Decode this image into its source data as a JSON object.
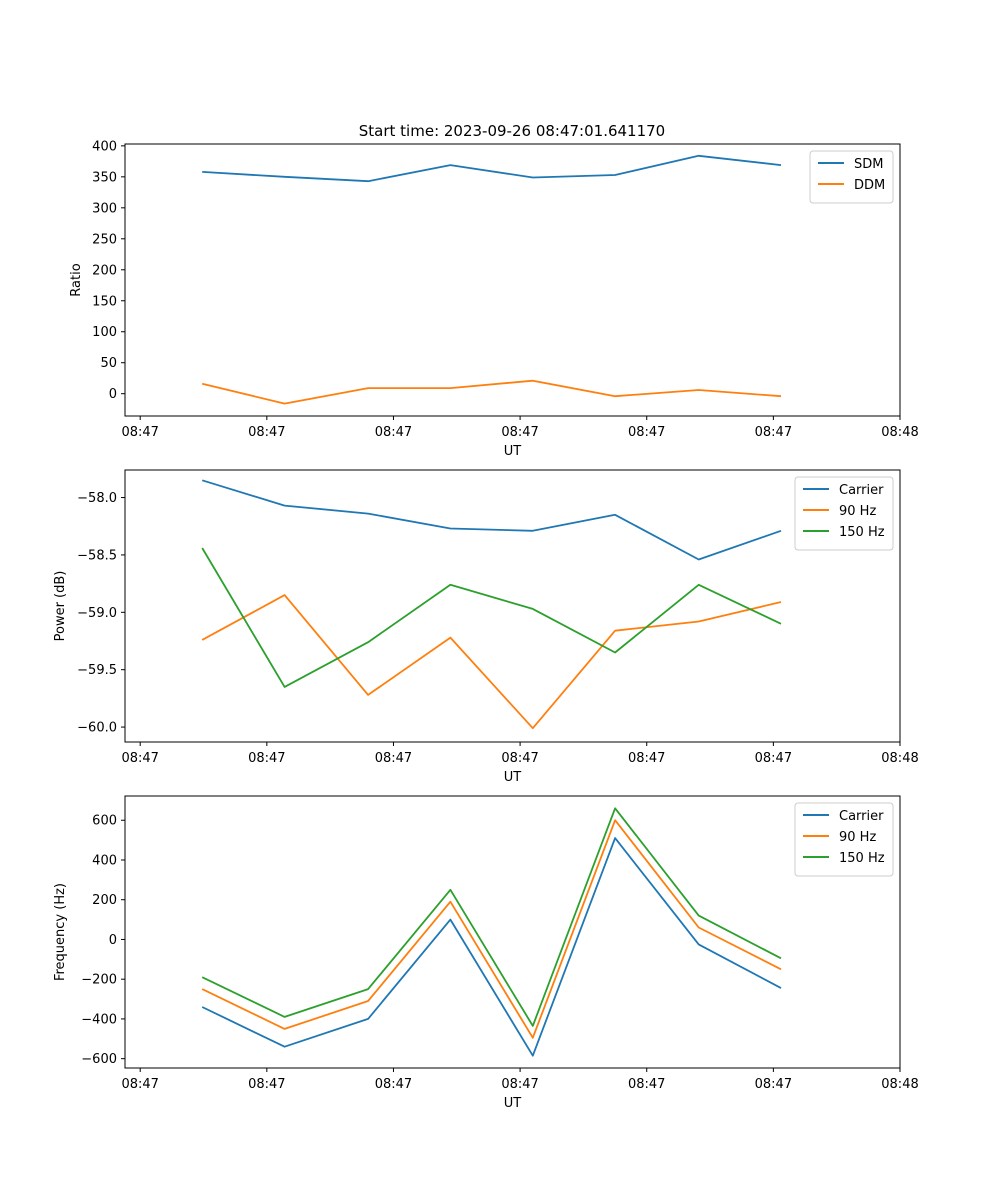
{
  "figure": {
    "title": "Start time: 2023-09-26 08:47:01.641170"
  },
  "chart_data": [
    {
      "type": "line",
      "title": "Start time: 2023-09-26 08:47:01.641170",
      "xlabel": "UT",
      "ylabel": "Ratio",
      "xlim": [
        -0.12,
        6.0
      ],
      "x_ticks": [
        0,
        1,
        2,
        3,
        4,
        5,
        6
      ],
      "x_tick_labels": [
        "08:47",
        "08:47",
        "08:47",
        "08:47",
        "08:47",
        "08:47",
        "08:48"
      ],
      "ylim": [
        -36,
        403
      ],
      "y_ticks": [
        0,
        50,
        100,
        150,
        200,
        250,
        300,
        350,
        400
      ],
      "y_tick_labels": [
        "0",
        "50",
        "100",
        "150",
        "200",
        "250",
        "300",
        "350",
        "400"
      ],
      "grid": false,
      "legend_position": "top-right",
      "x": [
        0.49,
        1.14,
        1.8,
        2.45,
        3.1,
        3.75,
        4.41,
        5.06
      ],
      "series": [
        {
          "name": "SDM",
          "color": "#1f77b4",
          "values": [
            358,
            350,
            343,
            369,
            349,
            353,
            384,
            369
          ]
        },
        {
          "name": "DDM",
          "color": "#ff7f0e",
          "values": [
            16,
            -16,
            9,
            9,
            21,
            -4,
            6,
            -4
          ]
        }
      ]
    },
    {
      "type": "line",
      "title": "",
      "xlabel": "UT",
      "ylabel": "Power (dB)",
      "xlim": [
        -0.12,
        6.0
      ],
      "x_ticks": [
        0,
        1,
        2,
        3,
        4,
        5,
        6
      ],
      "x_tick_labels": [
        "08:47",
        "08:47",
        "08:47",
        "08:47",
        "08:47",
        "08:47",
        "08:48"
      ],
      "ylim": [
        -60.13,
        -57.76
      ],
      "y_ticks": [
        -60.0,
        -59.5,
        -59.0,
        -58.5,
        -58.0
      ],
      "y_tick_labels": [
        "−60.0",
        "−59.5",
        "−59.0",
        "−58.5",
        "−58.0"
      ],
      "grid": false,
      "legend_position": "top-right",
      "x": [
        0.49,
        1.14,
        1.8,
        2.45,
        3.1,
        3.75,
        4.41,
        5.06
      ],
      "series": [
        {
          "name": "Carrier",
          "color": "#1f77b4",
          "values": [
            -57.85,
            -58.07,
            -58.14,
            -58.27,
            -58.29,
            -58.15,
            -58.54,
            -58.29
          ]
        },
        {
          "name": "90 Hz",
          "color": "#ff7f0e",
          "values": [
            -59.24,
            -58.85,
            -59.72,
            -59.22,
            -60.01,
            -59.16,
            -59.08,
            -58.91
          ]
        },
        {
          "name": "150 Hz",
          "color": "#2ca02c",
          "values": [
            -58.44,
            -59.65,
            -59.26,
            -58.76,
            -58.97,
            -59.35,
            -58.76,
            -59.1
          ]
        }
      ]
    },
    {
      "type": "line",
      "title": "",
      "xlabel": "UT",
      "ylabel": "Frequency (Hz)",
      "xlim": [
        -0.12,
        6.0
      ],
      "x_ticks": [
        0,
        1,
        2,
        3,
        4,
        5,
        6
      ],
      "x_tick_labels": [
        "08:47",
        "08:47",
        "08:47",
        "08:47",
        "08:47",
        "08:47",
        "08:48"
      ],
      "ylim": [
        -647,
        722
      ],
      "y_ticks": [
        -600,
        -400,
        -200,
        0,
        200,
        400,
        600
      ],
      "y_tick_labels": [
        "−600",
        "−400",
        "−200",
        "0",
        "200",
        "400",
        "600"
      ],
      "grid": false,
      "legend_position": "top-right",
      "x": [
        0.49,
        1.14,
        1.8,
        2.45,
        3.1,
        3.75,
        4.41,
        5.06
      ],
      "series": [
        {
          "name": "Carrier",
          "color": "#1f77b4",
          "values": [
            -340,
            -540,
            -400,
            100,
            -585,
            510,
            -25,
            -245
          ]
        },
        {
          "name": "90 Hz",
          "color": "#ff7f0e",
          "values": [
            -250,
            -450,
            -310,
            190,
            -495,
            600,
            60,
            -150
          ]
        },
        {
          "name": "150 Hz",
          "color": "#2ca02c",
          "values": [
            -190,
            -390,
            -250,
            250,
            -435,
            660,
            120,
            -95
          ]
        }
      ]
    }
  ]
}
